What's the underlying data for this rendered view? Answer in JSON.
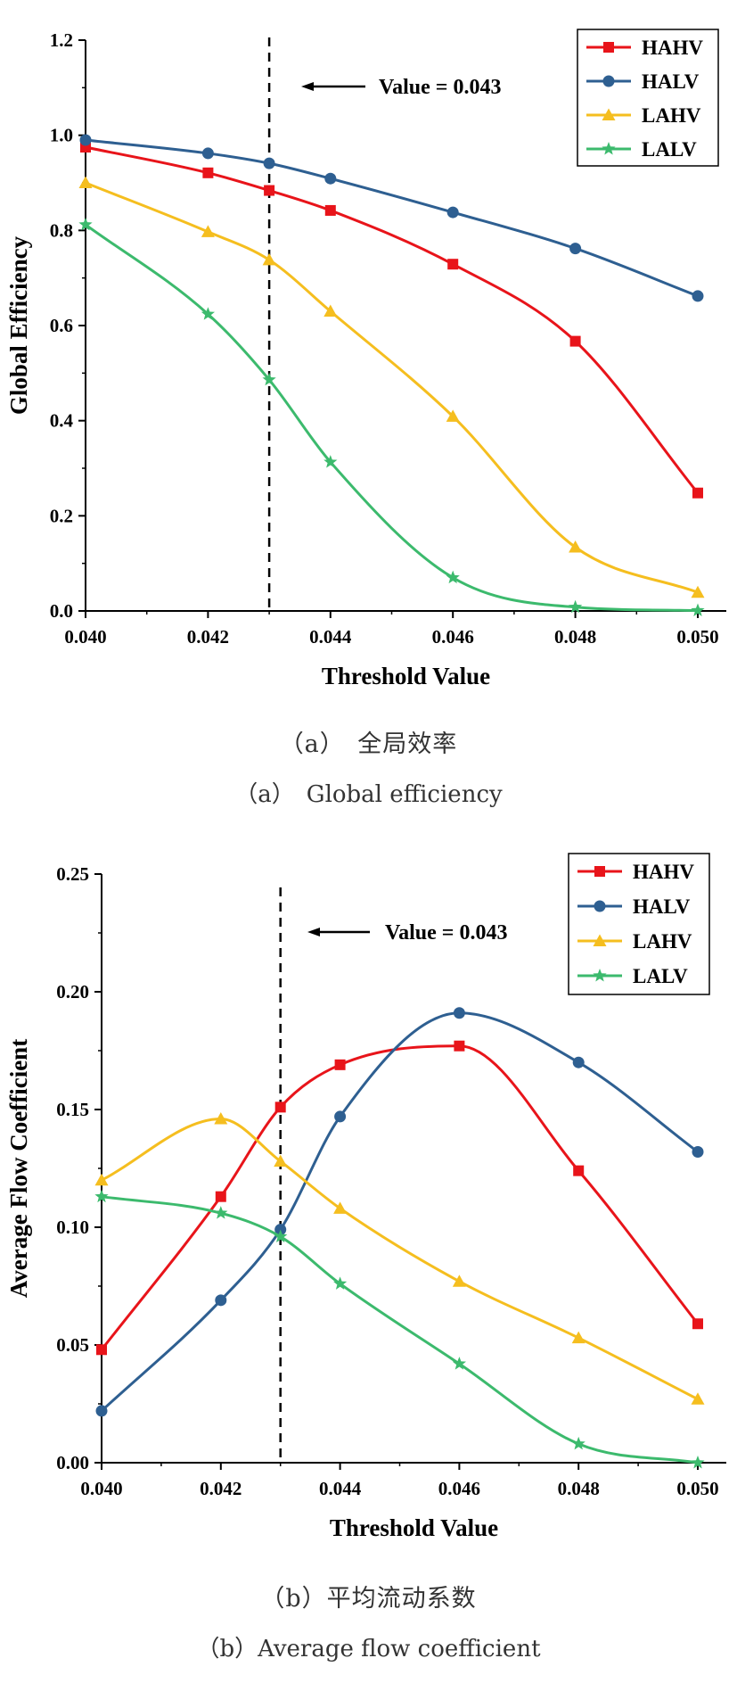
{
  "chart_data": [
    {
      "type": "line",
      "x": [
        0.04,
        0.042,
        0.043,
        0.044,
        0.046,
        0.048,
        0.05
      ],
      "xticks": [
        "0.040",
        "0.042",
        "0.044",
        "0.046",
        "0.048",
        "0.050"
      ],
      "yticks": [
        "0.0",
        "0.2",
        "0.4",
        "0.6",
        "0.8",
        "1.0",
        "1.2"
      ],
      "xlim": [
        0.04,
        0.05
      ],
      "ylim": [
        0.0,
        1.2
      ],
      "xlabel": "Threshold Value",
      "ylabel": "Global Efficiency",
      "annotation": "Value = 0.043",
      "vline": 0.043,
      "legend_position": "top-right",
      "series": [
        {
          "name": "HAHV",
          "color": "#e8141a",
          "marker": "square",
          "values": [
            0.975,
            0.921,
            0.884,
            0.842,
            0.729,
            0.567,
            0.248
          ]
        },
        {
          "name": "HALV",
          "color": "#2e5f91",
          "marker": "circle",
          "values": [
            0.99,
            0.962,
            0.941,
            0.909,
            0.838,
            0.762,
            0.662
          ]
        },
        {
          "name": "LAHV",
          "color": "#f5be1f",
          "marker": "triangle",
          "values": [
            0.9,
            0.797,
            0.738,
            0.63,
            0.409,
            0.134,
            0.039
          ]
        },
        {
          "name": "LALV",
          "color": "#3cba6d",
          "marker": "star",
          "values": [
            0.812,
            0.624,
            0.486,
            0.313,
            0.07,
            0.008,
            0.001
          ]
        }
      ]
    },
    {
      "type": "line",
      "x": [
        0.04,
        0.042,
        0.043,
        0.044,
        0.046,
        0.048,
        0.05
      ],
      "xticks": [
        "0.040",
        "0.042",
        "0.044",
        "0.046",
        "0.048",
        "0.050"
      ],
      "yticks": [
        "0.00",
        "0.05",
        "0.10",
        "0.15",
        "0.20",
        "0.25"
      ],
      "xlim": [
        0.04,
        0.05
      ],
      "ylim": [
        0.0,
        0.25
      ],
      "xlabel": "Threshold Value",
      "ylabel": "Average Flow Coefficient",
      "annotation": "Value = 0.043",
      "vline": 0.043,
      "legend_position": "top-right",
      "series": [
        {
          "name": "HAHV",
          "color": "#e8141a",
          "marker": "square",
          "values": [
            0.048,
            0.113,
            0.151,
            0.169,
            0.177,
            0.124,
            0.059
          ]
        },
        {
          "name": "HALV",
          "color": "#2e5f91",
          "marker": "circle",
          "values": [
            0.022,
            0.069,
            0.099,
            0.147,
            0.191,
            0.17,
            0.132
          ]
        },
        {
          "name": "LAHV",
          "color": "#f5be1f",
          "marker": "triangle",
          "values": [
            0.12,
            0.146,
            0.128,
            0.108,
            0.077,
            0.053,
            0.027
          ]
        },
        {
          "name": "LALV",
          "color": "#3cba6d",
          "marker": "star",
          "values": [
            0.113,
            0.106,
            0.096,
            0.076,
            0.042,
            0.008,
            0.0
          ]
        }
      ]
    }
  ],
  "captions": {
    "a_cn": "（a）　全局效率",
    "a_en": "（a）　Global efficiency",
    "b_cn": "（b）平均流动系数",
    "b_en": "（b）Average flow coefficient"
  }
}
